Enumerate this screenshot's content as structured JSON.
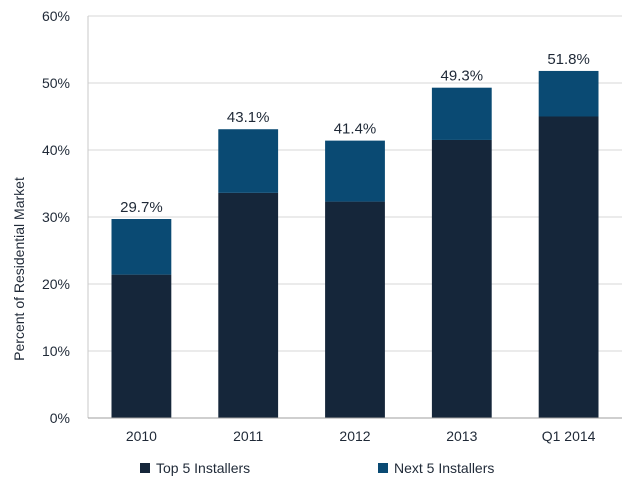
{
  "chart_data": {
    "type": "bar",
    "stacked": true,
    "title": "",
    "xlabel": "",
    "ylabel": "Percent  of  Residential  Market",
    "categories": [
      "2010",
      "2011",
      "2012",
      "2013",
      "Q1   2014"
    ],
    "series": [
      {
        "name": "Top  5  Installers",
        "color": "#15263a",
        "values": [
          21.4,
          33.6,
          32.3,
          41.5,
          45.0
        ]
      },
      {
        "name": "Next  5  Installers",
        "color": "#0a4a73",
        "values": [
          8.3,
          9.5,
          9.1,
          7.8,
          6.8
        ]
      }
    ],
    "totals": [
      29.7,
      43.1,
      41.4,
      49.3,
      51.8
    ],
    "total_labels": [
      "29.7%",
      "43.1%",
      "41.4%",
      "49.3%",
      "51.8%"
    ],
    "ylim": [
      0,
      60
    ],
    "yticks": [
      0,
      10,
      20,
      30,
      40,
      50,
      60
    ],
    "ytick_labels": [
      "0%",
      "10%",
      "20%",
      "30%",
      "40%",
      "50%",
      "60%"
    ],
    "grid": "horizontal",
    "legend": "bottom-center"
  }
}
